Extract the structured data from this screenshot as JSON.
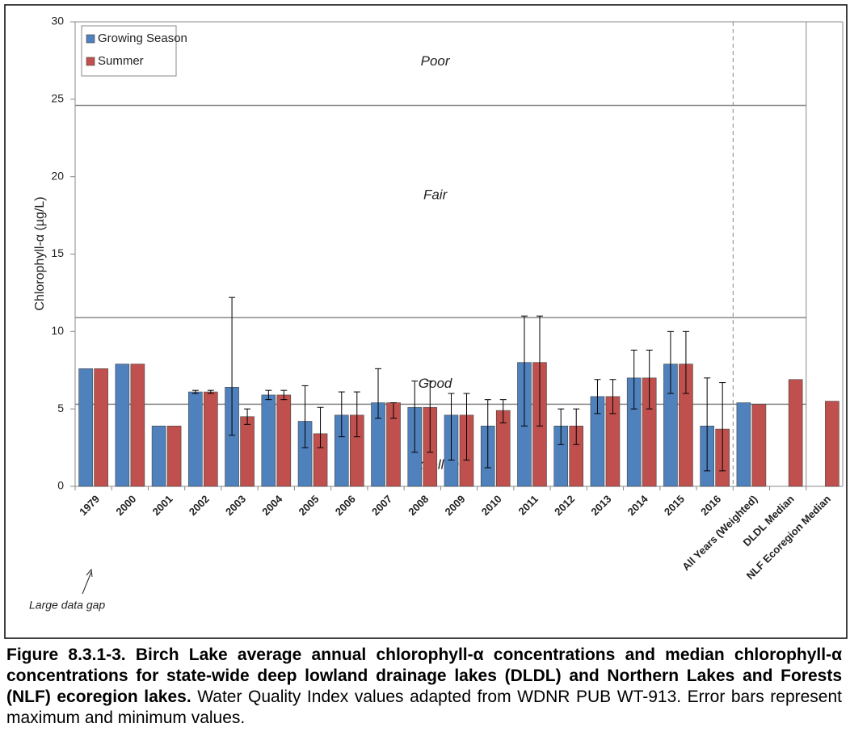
{
  "chart_data": {
    "type": "bar",
    "y_label": "Chlorophyll-α  (µg/L)",
    "annotation": "Large data gap",
    "categories": [
      "1979",
      "2000",
      "2001",
      "2002",
      "2003",
      "2004",
      "2005",
      "2006",
      "2007",
      "2008",
      "2009",
      "2010",
      "2011",
      "2012",
      "2013",
      "2014",
      "2015",
      "2016",
      "All Years (Weighted)",
      "DLDL Median",
      "NLF Ecoregion Median"
    ],
    "series": [
      {
        "name": "Growing Season",
        "color": "#4f81bd",
        "values": [
          7.6,
          7.9,
          3.9,
          6.1,
          6.4,
          5.9,
          4.2,
          4.6,
          5.4,
          5.1,
          4.6,
          3.9,
          8.0,
          3.9,
          5.8,
          7.0,
          7.9,
          3.9,
          5.4,
          null,
          null
        ],
        "max": [
          null,
          null,
          null,
          6.2,
          12.2,
          6.2,
          6.5,
          6.1,
          7.6,
          6.8,
          6.0,
          5.6,
          11.0,
          5.0,
          6.9,
          8.8,
          10.0,
          7.0,
          null,
          null,
          null
        ],
        "min": [
          null,
          null,
          null,
          6.0,
          3.3,
          5.6,
          2.5,
          3.2,
          4.4,
          2.2,
          1.7,
          1.2,
          3.9,
          2.7,
          4.7,
          5.0,
          6.0,
          1.0,
          null,
          null,
          null
        ]
      },
      {
        "name": "Summer",
        "color": "#c0504d",
        "values": [
          7.6,
          7.9,
          3.9,
          6.1,
          4.5,
          5.9,
          3.4,
          4.6,
          5.4,
          5.1,
          4.6,
          4.9,
          8.0,
          3.9,
          5.8,
          7.0,
          7.9,
          3.7,
          5.3,
          6.9,
          5.5
        ],
        "max": [
          null,
          null,
          null,
          6.2,
          5.0,
          6.2,
          5.1,
          6.1,
          5.4,
          6.8,
          6.0,
          5.6,
          11.0,
          5.0,
          6.9,
          8.8,
          10.0,
          6.7,
          null,
          null,
          null
        ],
        "min": [
          null,
          null,
          null,
          6.0,
          4.0,
          5.6,
          2.5,
          3.2,
          4.4,
          2.2,
          1.7,
          4.1,
          3.9,
          2.7,
          4.7,
          5.0,
          6.0,
          1.0,
          null,
          null,
          null
        ]
      }
    ],
    "zones": [
      "Poor",
      "Fair",
      "Good",
      "Excellent"
    ],
    "thresholds": [
      24.6,
      10.9,
      5.3
    ],
    "ylim": [
      0,
      30
    ],
    "yticks": [
      0,
      5,
      10,
      15,
      20,
      25,
      30
    ],
    "legend": "upper left"
  },
  "caption": {
    "bold": "Figure 8.3.1-3. Birch Lake average annual chlorophyll-α concentrations and median chlorophyll-α concentrations for state-wide deep lowland drainage lakes (DLDL) and Northern Lakes and Forests (NLF) ecoregion lakes.",
    "text": "Water Quality Index values adapted from WDNR PUB WT-913.  Error bars represent maximum and minimum values."
  }
}
